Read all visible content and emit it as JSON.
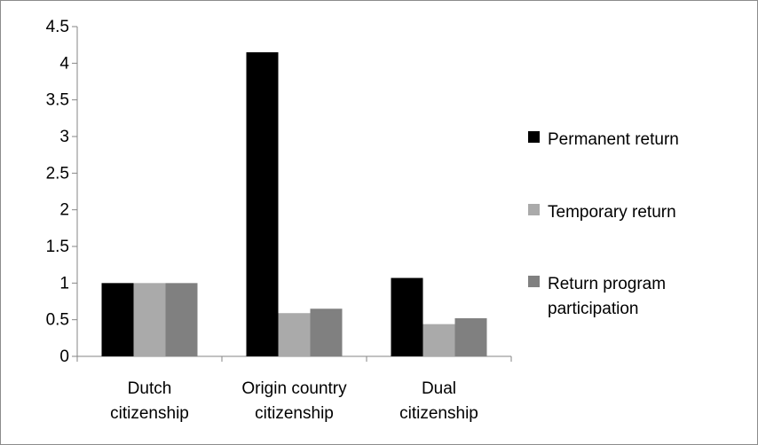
{
  "chart_data": {
    "type": "bar",
    "categories": [
      [
        "Dutch",
        "citizenship"
      ],
      [
        "Origin country",
        "citizenship"
      ],
      [
        "Dual",
        "citizenship"
      ]
    ],
    "series": [
      {
        "name": "Permanent return",
        "values": [
          1.0,
          4.15,
          1.07
        ],
        "color": "#000000",
        "legend_lines": [
          "Permanent return"
        ]
      },
      {
        "name": "Temporary return",
        "values": [
          1.0,
          0.59,
          0.44
        ],
        "color": "#aaaaaa",
        "legend_lines": [
          "Temporary return"
        ]
      },
      {
        "name": "Return program participation",
        "values": [
          1.0,
          0.65,
          0.52
        ],
        "color": "#808080",
        "legend_lines": [
          "Return program",
          "participation"
        ]
      }
    ],
    "ylim": [
      0,
      4.5
    ],
    "yticks": [
      "0",
      "0.5",
      "1",
      "1.5",
      "2",
      "2.5",
      "3",
      "3.5",
      "4",
      "4.5"
    ],
    "grid": false,
    "legend_position": "right",
    "title": "",
    "xlabel": "",
    "ylabel": ""
  }
}
